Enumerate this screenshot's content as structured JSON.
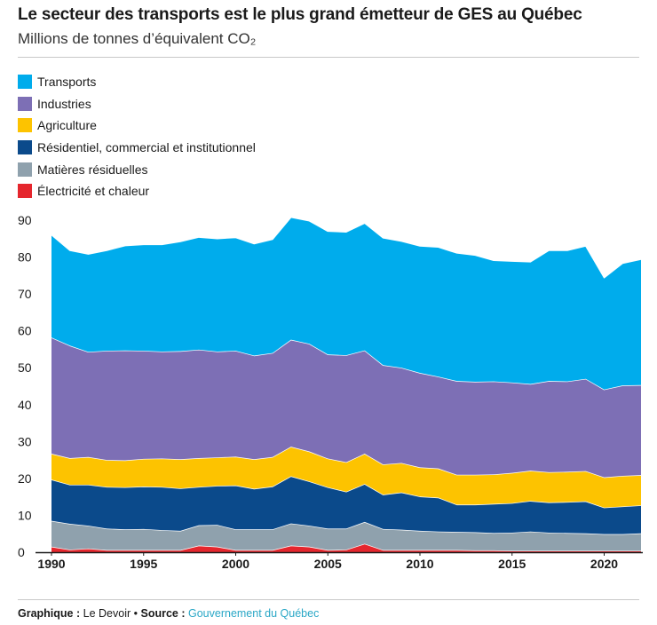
{
  "title": "Le secteur des transports est le plus grand émetteur de GES au Québec",
  "subtitle": "Millions de tonnes d’équivalent CO₂",
  "footer": {
    "graphic_label": "Graphique :",
    "graphic_value": "Le Devoir",
    "separator": "•",
    "source_label": "Source :",
    "source_value": "Gouvernement du Québec"
  },
  "chart_data": {
    "type": "area",
    "stacked": true,
    "title": "Le secteur des transports est le plus grand émetteur de GES au Québec",
    "ylabel": "Millions de tonnes d’équivalent CO₂",
    "xlabel": "",
    "ylim": [
      0,
      90
    ],
    "yticks": [
      0,
      10,
      20,
      30,
      40,
      50,
      60,
      70,
      80,
      90
    ],
    "xticks": [
      1990,
      1995,
      2000,
      2005,
      2010,
      2015,
      2020
    ],
    "grid": false,
    "legend_position": "top-left",
    "x": [
      1990,
      1991,
      1992,
      1993,
      1994,
      1995,
      1996,
      1997,
      1998,
      1999,
      2000,
      2001,
      2002,
      2003,
      2004,
      2005,
      2006,
      2007,
      2008,
      2009,
      2010,
      2011,
      2012,
      2013,
      2014,
      2015,
      2016,
      2017,
      2018,
      2019,
      2020,
      2021,
      2022
    ],
    "series": [
      {
        "name": "Électricité et chaleur",
        "color": "#e5262d",
        "values": [
          1.5,
          0.7,
          1.0,
          0.6,
          0.6,
          0.6,
          0.6,
          0.6,
          1.8,
          1.5,
          0.6,
          0.6,
          0.6,
          1.8,
          1.5,
          0.6,
          0.7,
          2.3,
          0.6,
          0.6,
          0.6,
          0.6,
          0.6,
          0.5,
          0.5,
          0.4,
          0.4,
          0.4,
          0.4,
          0.4,
          0.4,
          0.4,
          0.4
        ]
      },
      {
        "name": "Matières résiduelles",
        "color": "#8fa1ad",
        "values": [
          7.0,
          7.0,
          6.2,
          5.8,
          5.6,
          5.7,
          5.4,
          5.2,
          5.5,
          5.9,
          5.6,
          5.6,
          5.6,
          6.0,
          5.7,
          5.8,
          5.7,
          5.9,
          5.7,
          5.5,
          5.2,
          5.0,
          4.9,
          4.9,
          4.7,
          4.9,
          5.2,
          4.9,
          4.8,
          4.7,
          4.5,
          4.5,
          4.7
        ]
      },
      {
        "name": "Résidentiel, commercial et institutionnel",
        "color": "#0b4a8b",
        "values": [
          11.2,
          10.6,
          11.1,
          11.3,
          11.4,
          11.5,
          11.7,
          11.5,
          10.4,
          10.6,
          11.9,
          11.0,
          11.6,
          12.8,
          12.0,
          11.2,
          10.0,
          10.3,
          9.3,
          10.1,
          9.3,
          9.2,
          7.4,
          7.5,
          7.9,
          8.0,
          8.3,
          8.2,
          8.4,
          8.7,
          7.2,
          7.5,
          7.6
        ]
      },
      {
        "name": "Agriculture",
        "color": "#fdc300",
        "values": [
          7.0,
          7.2,
          7.5,
          7.3,
          7.3,
          7.5,
          7.7,
          7.9,
          7.8,
          7.7,
          7.8,
          8.0,
          8.0,
          8.0,
          8.1,
          7.8,
          8.0,
          8.2,
          8.2,
          8.0,
          7.9,
          7.9,
          8.1,
          8.1,
          8.0,
          8.2,
          8.2,
          8.2,
          8.2,
          8.2,
          8.2,
          8.3,
          8.2
        ]
      },
      {
        "name": "Industries",
        "color": "#7d6fb5",
        "values": [
          31.5,
          30.5,
          28.5,
          29.6,
          29.8,
          29.3,
          29.0,
          29.3,
          29.4,
          28.7,
          28.7,
          28.1,
          28.2,
          29.0,
          29.2,
          28.2,
          29.0,
          28.0,
          26.9,
          25.8,
          25.6,
          24.9,
          25.4,
          25.2,
          25.2,
          24.5,
          23.5,
          24.7,
          24.5,
          25.0,
          23.8,
          24.5,
          24.4
        ]
      },
      {
        "name": "Transports",
        "color": "#00acec",
        "values": [
          27.8,
          25.8,
          26.5,
          27.2,
          28.4,
          28.8,
          29.0,
          29.7,
          30.5,
          30.6,
          30.7,
          30.3,
          30.8,
          33.2,
          33.3,
          33.4,
          33.4,
          34.5,
          34.5,
          34.3,
          34.4,
          35.1,
          34.7,
          34.3,
          32.8,
          32.9,
          33.1,
          35.4,
          35.5,
          36.0,
          30.3,
          33.1,
          34.1
        ]
      }
    ]
  }
}
